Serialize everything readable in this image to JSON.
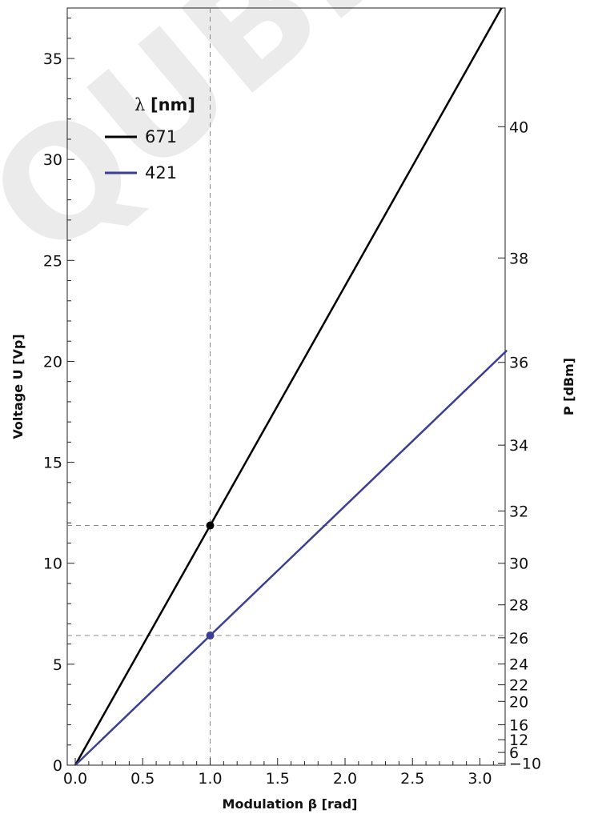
{
  "watermark": "QUBIG GmbH",
  "chart_data": {
    "type": "line",
    "xlabel": "Modulation β [rad]",
    "ylabel": "Voltage U [Vp]",
    "y2label": "P [dBm]",
    "xlim": [
      0,
      3.2
    ],
    "ylim": [
      0,
      37.5
    ],
    "x_ticks": [
      0.0,
      0.5,
      1.0,
      1.5,
      2.0,
      2.5,
      3.0
    ],
    "x_tick_labels": [
      "0.0",
      "0.5",
      "1.0",
      "1.5",
      "2.0",
      "2.5",
      "3.0"
    ],
    "y_ticks": [
      0,
      5,
      10,
      15,
      20,
      25,
      30,
      35
    ],
    "y_tick_labels": [
      "0",
      "5",
      "10",
      "15",
      "20",
      "25",
      "30",
      "35"
    ],
    "y2_ticks": [
      {
        "label": "40",
        "at_voltage": 31.62
      },
      {
        "label": "38",
        "at_voltage": 25.12
      },
      {
        "label": "36",
        "at_voltage": 19.95
      },
      {
        "label": "34",
        "at_voltage": 15.85
      },
      {
        "label": "32",
        "at_voltage": 12.59
      },
      {
        "label": "30",
        "at_voltage": 10.0
      },
      {
        "label": "28",
        "at_voltage": 7.94
      },
      {
        "label": "26",
        "at_voltage": 6.31
      },
      {
        "label": "24",
        "at_voltage": 5.01
      },
      {
        "label": "22",
        "at_voltage": 3.98
      },
      {
        "label": "20",
        "at_voltage": 3.16
      },
      {
        "label": "16",
        "at_voltage": 2.0
      },
      {
        "label": "12",
        "at_voltage": 1.26
      },
      {
        "label": "6",
        "at_voltage": 0.63
      },
      {
        "label": "−10",
        "at_voltage": 0.1
      }
    ],
    "legend": {
      "title": "λ",
      "title_unit": "[nm]",
      "position": "top-left"
    },
    "series": [
      {
        "name": "671",
        "color": "#000000",
        "x": [
          0.0,
          1.0,
          3.2
        ],
        "y": [
          0.0,
          11.87,
          37.98
        ]
      },
      {
        "name": "421",
        "color": "#3a3f95",
        "x": [
          0.0,
          1.0,
          3.2
        ],
        "y": [
          0.0,
          6.42,
          20.54
        ]
      }
    ],
    "markers": [
      {
        "series": "671",
        "x": 1.0,
        "y": 11.87
      },
      {
        "series": "421",
        "x": 1.0,
        "y": 6.42
      }
    ],
    "reference_lines": {
      "vertical_x": 1.0,
      "horizontal_y": [
        11.87,
        6.42
      ]
    },
    "grid": false
  }
}
